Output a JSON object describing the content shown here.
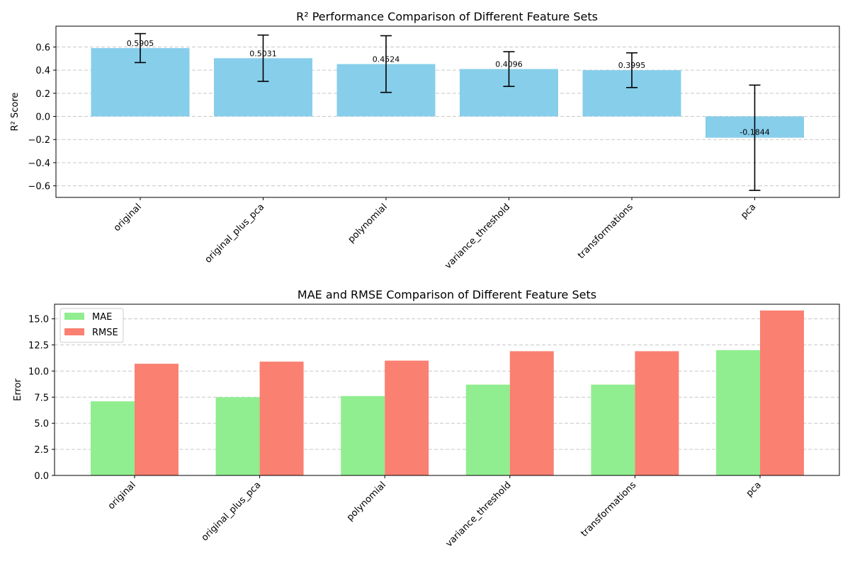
{
  "colors": {
    "r2_bar": "#87ceeb",
    "mae": "#90ee90",
    "rmse": "#fa8072",
    "grid": "#c8c8c8",
    "axis": "#000000",
    "errorbar": "#000000"
  },
  "chart_data": [
    {
      "type": "bar",
      "title": "R² Performance Comparison of Different Feature Sets",
      "xlabel": "",
      "ylabel": "R² Score",
      "categories": [
        "original",
        "original_plus_pca",
        "polynomial",
        "variance_threshold",
        "transformations",
        "pca"
      ],
      "values": [
        0.5905,
        0.5031,
        0.4524,
        0.4096,
        0.3995,
        -0.1844
      ],
      "value_labels": [
        "0.5905",
        "0.5031",
        "0.4524",
        "0.4096",
        "0.3995",
        "-0.1844"
      ],
      "errors": [
        0.125,
        0.2,
        0.245,
        0.15,
        0.15,
        0.455
      ],
      "ylim": [
        -0.7,
        0.78
      ],
      "yticks": [
        -0.6,
        -0.4,
        -0.2,
        0.0,
        0.2,
        0.4,
        0.6
      ],
      "ytick_labels": [
        "−0.6",
        "−0.4",
        "−0.2",
        "0.0",
        "0.2",
        "0.4",
        "0.6"
      ],
      "grid": "y-dashed",
      "legend": "none"
    },
    {
      "type": "bar",
      "title": "MAE and RMSE Comparison of Different Feature Sets",
      "xlabel": "",
      "ylabel": "Error",
      "categories": [
        "original",
        "original_plus_pca",
        "polynomial",
        "variance_threshold",
        "transformations",
        "pca"
      ],
      "series": [
        {
          "name": "MAE",
          "values": [
            7.1,
            7.5,
            7.6,
            8.7,
            8.7,
            12.0
          ]
        },
        {
          "name": "RMSE",
          "values": [
            10.7,
            10.9,
            11.0,
            11.9,
            11.9,
            15.8
          ]
        }
      ],
      "ylim": [
        0,
        16.4
      ],
      "yticks": [
        0.0,
        2.5,
        5.0,
        7.5,
        10.0,
        12.5,
        15.0
      ],
      "ytick_labels": [
        "0.0",
        "2.5",
        "5.0",
        "7.5",
        "10.0",
        "12.5",
        "15.0"
      ],
      "grid": "y-dashed",
      "legend": "upper-left"
    }
  ]
}
